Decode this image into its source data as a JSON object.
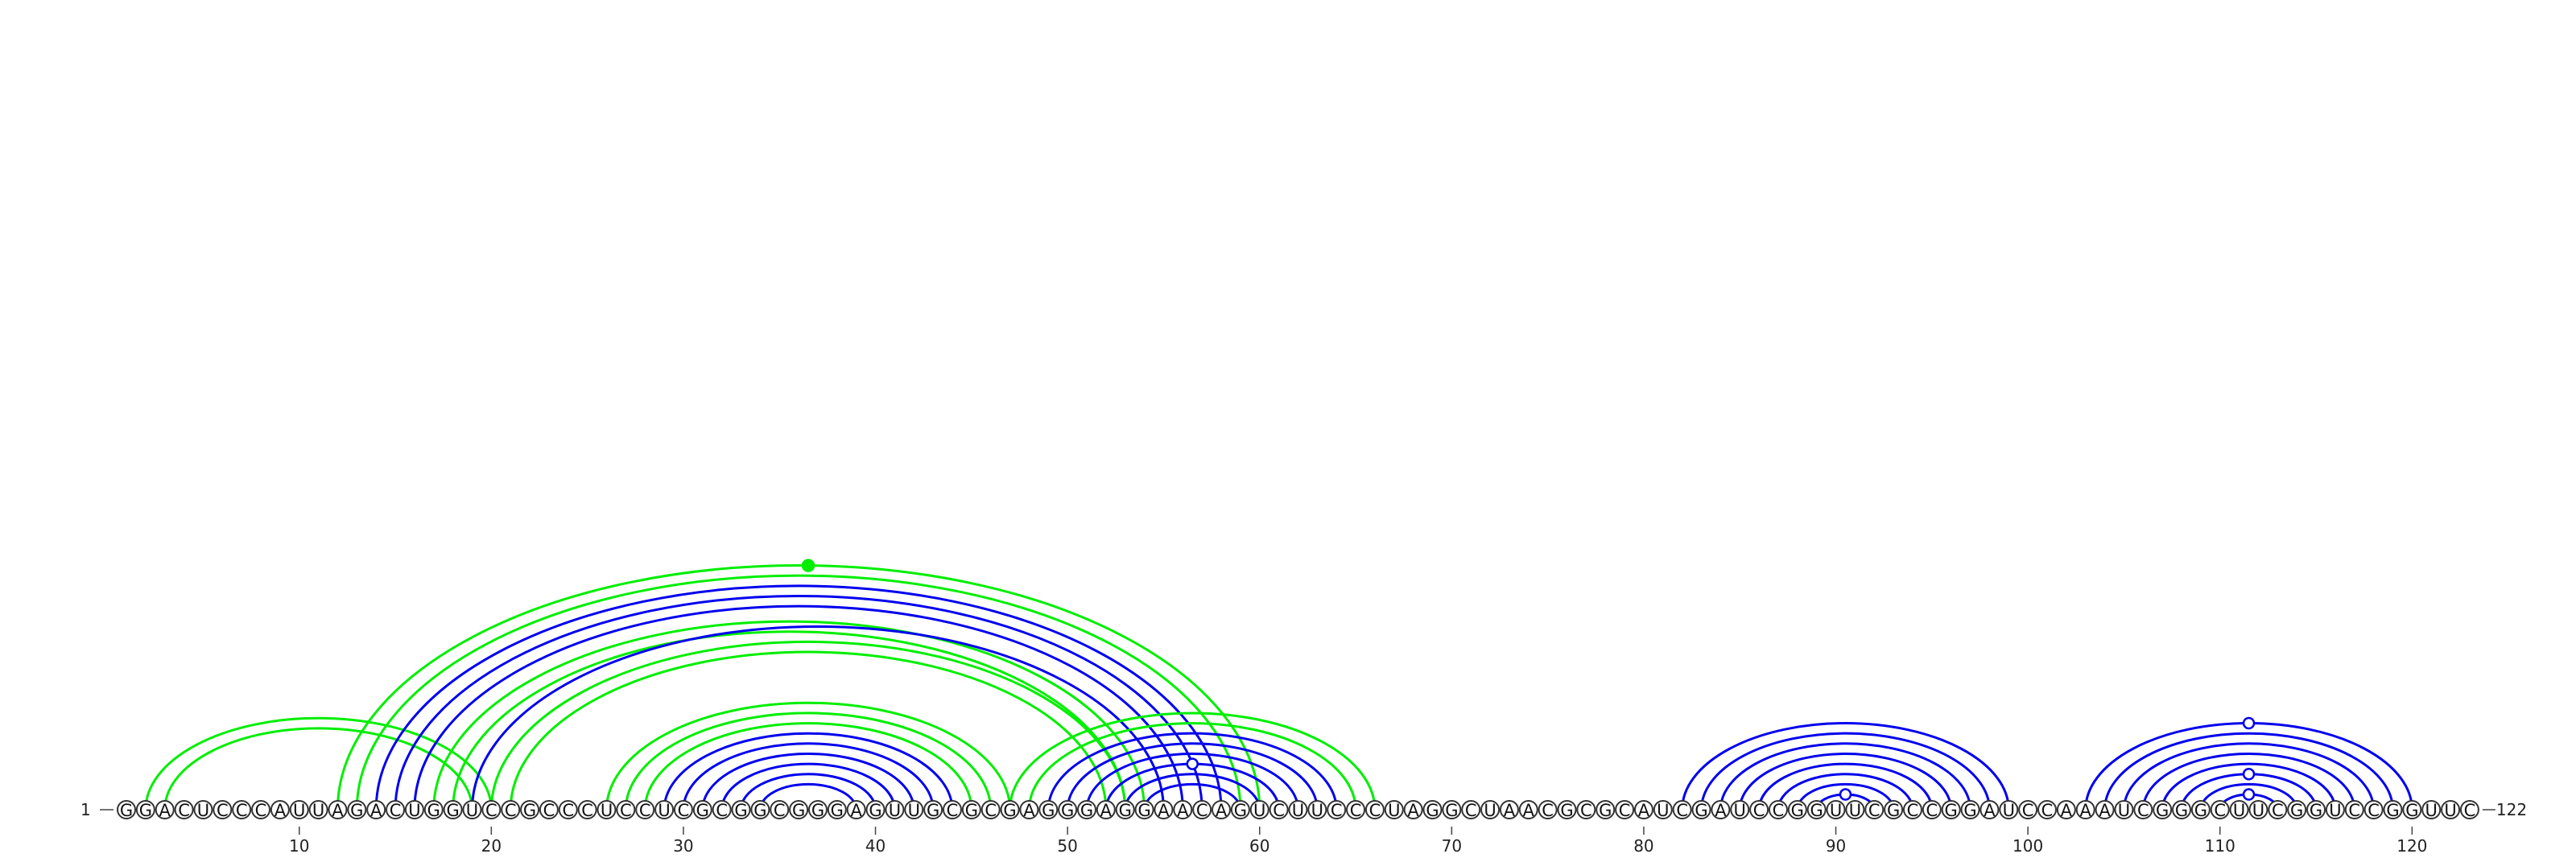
{
  "chart_data": {
    "type": "arc",
    "sequence": "GGACUCCCAUUAGACUGGUCCGCCCUCCUCGCGGCGGGAGUUGCGCGAGGGAGGAACAGUCUUCCCUAGGCUAACGCGCAUCGAUCCGGUUCGCCGGAUCCAAAUCGGGCUUCGGUCCGGUUC",
    "length": 122,
    "start_label": "1",
    "end_label": "122",
    "ticks": [
      10,
      20,
      30,
      40,
      50,
      60,
      70,
      80,
      90,
      100,
      110,
      120
    ],
    "colors": {
      "blue": "#0000ee",
      "green": "#00ee00"
    },
    "arc_groups": [
      {
        "color": "green",
        "pairs": [
          [
            2,
            20
          ],
          [
            3,
            19
          ]
        ]
      },
      {
        "color": "green",
        "pairs": [
          [
            12,
            60
          ],
          [
            13,
            59
          ],
          [
            17,
            54
          ],
          [
            18,
            53
          ],
          [
            20,
            53
          ],
          [
            21,
            52
          ]
        ]
      },
      {
        "color": "blue",
        "pairs": [
          [
            14,
            58
          ],
          [
            15,
            57
          ],
          [
            16,
            56
          ],
          [
            19,
            55
          ]
        ]
      },
      {
        "color": "green",
        "pairs": [
          [
            26,
            47
          ],
          [
            27,
            46
          ],
          [
            28,
            45
          ]
        ]
      },
      {
        "color": "blue",
        "pairs": [
          [
            29,
            44
          ],
          [
            30,
            43
          ],
          [
            31,
            42
          ],
          [
            32,
            41
          ],
          [
            33,
            40
          ],
          [
            34,
            39
          ]
        ]
      },
      {
        "color": "green",
        "pairs": [
          [
            47,
            66
          ],
          [
            48,
            65
          ]
        ]
      },
      {
        "color": "blue",
        "pairs": [
          [
            49,
            64
          ],
          [
            50,
            63
          ],
          [
            51,
            62
          ],
          [
            52,
            61
          ],
          [
            53,
            60
          ],
          [
            54,
            59
          ]
        ]
      },
      {
        "color": "blue",
        "pairs": [
          [
            82,
            99
          ],
          [
            83,
            98
          ],
          [
            84,
            97
          ],
          [
            85,
            96
          ],
          [
            86,
            95
          ],
          [
            87,
            94
          ],
          [
            88,
            93
          ],
          [
            89,
            92
          ]
        ]
      },
      {
        "color": "blue",
        "pairs": [
          [
            103,
            120
          ],
          [
            104,
            119
          ],
          [
            105,
            118
          ],
          [
            106,
            117
          ],
          [
            107,
            116
          ],
          [
            108,
            115
          ],
          [
            109,
            114
          ],
          [
            110,
            113
          ]
        ]
      }
    ],
    "markers": [
      {
        "x": 36.5,
        "arc": [
          12,
          60
        ],
        "color": "green",
        "filled": true
      },
      {
        "x": 56.5,
        "arc": [
          52,
          61
        ],
        "color": "blue",
        "filled": false
      },
      {
        "x": 90.5,
        "arc": [
          89,
          92
        ],
        "color": "blue",
        "filled": false
      },
      {
        "x": 111.5,
        "arc": [
          103,
          120
        ],
        "color": "blue",
        "filled": false
      },
      {
        "x": 111.5,
        "arc": [
          108,
          115
        ],
        "color": "blue",
        "filled": false
      },
      {
        "x": 111.5,
        "arc": [
          110,
          113
        ],
        "color": "blue",
        "filled": false
      }
    ]
  }
}
